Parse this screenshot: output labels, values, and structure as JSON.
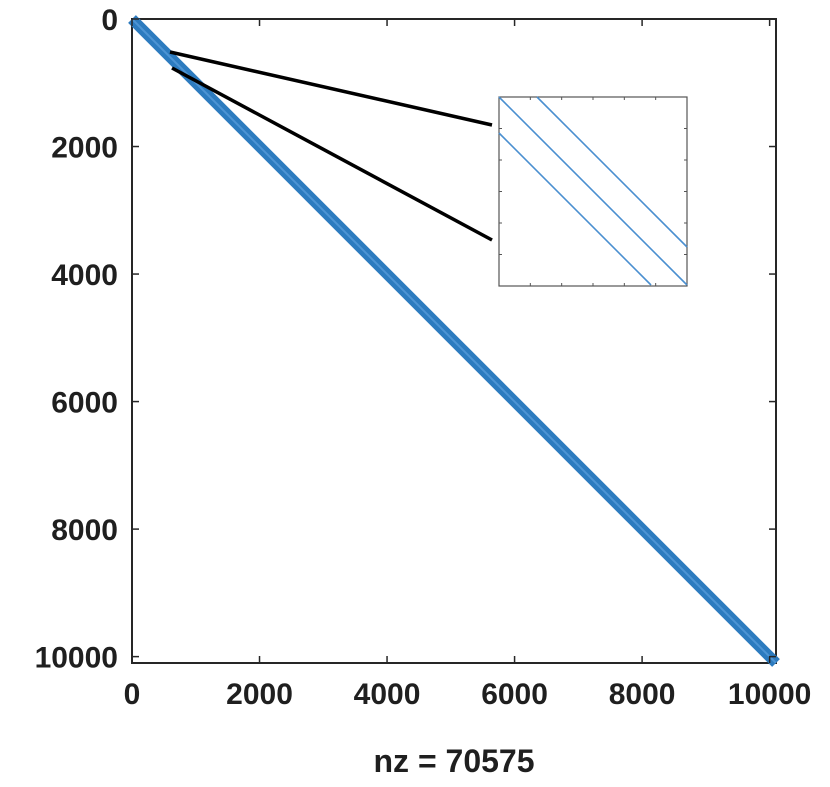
{
  "chart_data": {
    "type": "spy",
    "title": "",
    "xlabel": "nz = 70575",
    "ylabel": "",
    "xlim": [
      0,
      10100
    ],
    "ylim": [
      0,
      10100
    ],
    "y_reversed": true,
    "x_ticks": [
      0,
      2000,
      4000,
      6000,
      8000,
      10000
    ],
    "y_ticks": [
      0,
      2000,
      4000,
      6000,
      8000,
      10000
    ],
    "x_tick_labels": [
      "0",
      "2000",
      "4000",
      "6000",
      "8000",
      "10000"
    ],
    "y_tick_labels": [
      "0",
      "2000",
      "4000",
      "6000",
      "8000",
      "10000"
    ],
    "grid": false,
    "nonzeros": 70575,
    "matrix_size": 10100,
    "pattern": "banded diagonal",
    "band_color": "#2c7bbf",
    "inset": {
      "description_visible": "zoom of diagonal band",
      "diagonals": 3,
      "line_color": "#4a8fd0"
    }
  }
}
